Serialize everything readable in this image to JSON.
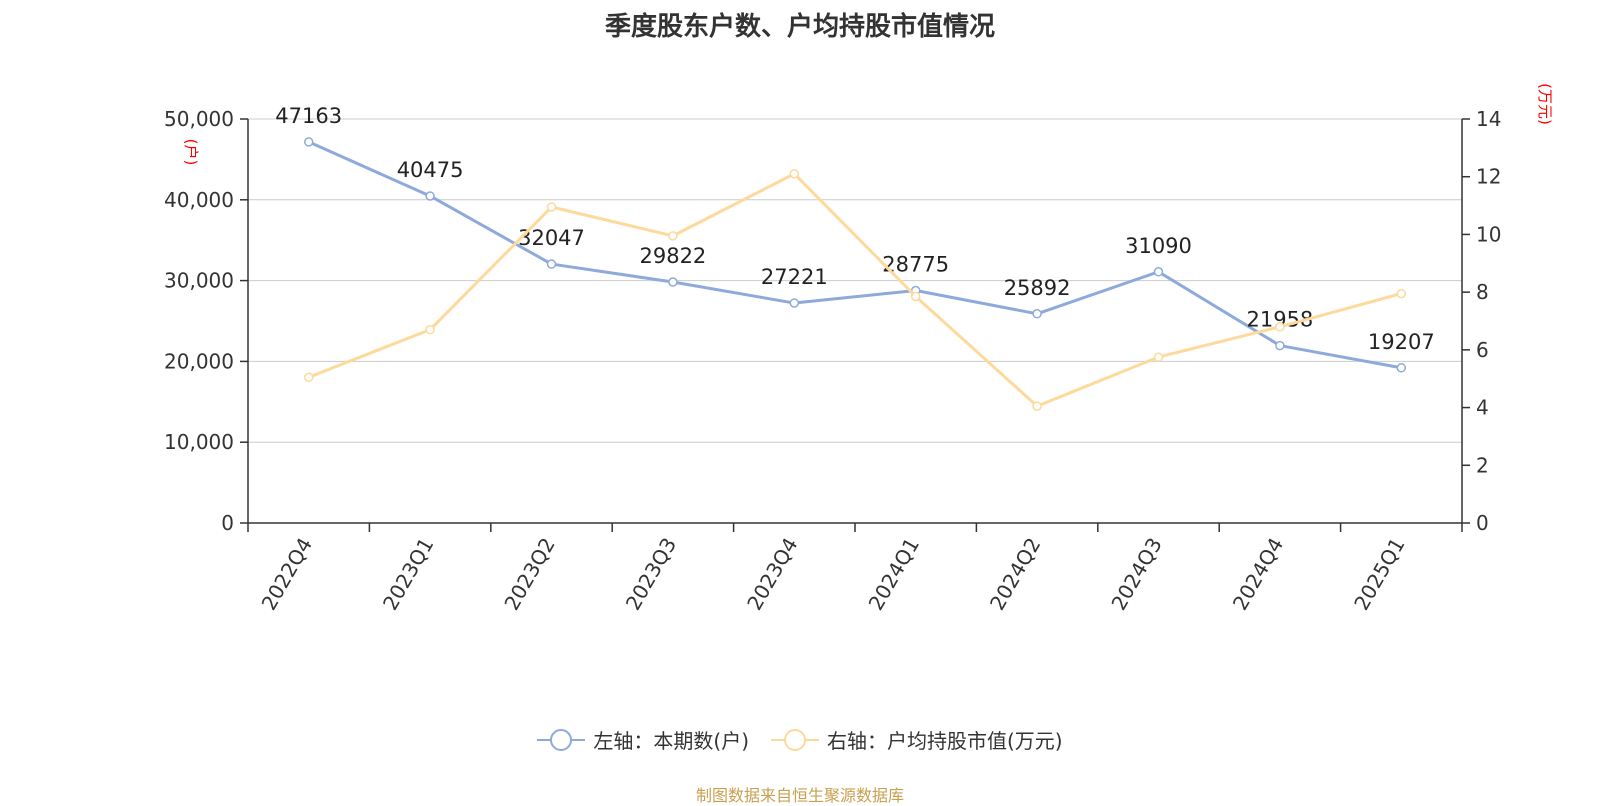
{
  "title": "季度股东户数、户均持股市值情况",
  "source": "制图数据来自恒生聚源数据库",
  "colors": {
    "left_series": "#8eaadb",
    "right_series": "#fdd99b",
    "axis_unit": "#ff0000",
    "grid": "#cccccc",
    "axis": "#333333"
  },
  "legend": {
    "left": "左轴：本期数(户)",
    "right": "右轴：户均持股市值(万元)"
  },
  "chart_data": {
    "type": "line",
    "categories": [
      "2022Q4",
      "2023Q1",
      "2023Q2",
      "2023Q3",
      "2023Q4",
      "2024Q1",
      "2024Q2",
      "2024Q3",
      "2024Q4",
      "2025Q1"
    ],
    "series": [
      {
        "name": "左轴：本期数(户)",
        "axis": "left",
        "values": [
          47163,
          40475,
          32047,
          29822,
          27221,
          28775,
          25892,
          31090,
          21958,
          19207
        ],
        "data_labels": [
          "47163",
          "40475",
          "32047",
          "29822",
          "27221",
          "28775",
          "25892",
          "31090",
          "21958",
          "19207"
        ]
      },
      {
        "name": "右轴：户均持股市值(万元)",
        "axis": "right",
        "values": [
          5.05,
          6.7,
          10.95,
          9.95,
          12.1,
          7.85,
          4.05,
          5.75,
          6.8,
          7.95
        ]
      }
    ],
    "left_axis": {
      "unit": "(户)",
      "ylim": [
        0,
        50000
      ],
      "ticks": [
        0,
        10000,
        20000,
        30000,
        40000,
        50000
      ],
      "tick_labels": [
        "0",
        "10,000",
        "20,000",
        "30,000",
        "40,000",
        "50,000"
      ]
    },
    "right_axis": {
      "unit": "(万元)",
      "ylim": [
        0,
        14
      ],
      "ticks": [
        0,
        2,
        4,
        6,
        8,
        10,
        12,
        14
      ],
      "tick_labels": [
        "0",
        "2",
        "4",
        "6",
        "8",
        "10",
        "12",
        "14"
      ]
    },
    "grid": true,
    "legend_position": "bottom"
  }
}
